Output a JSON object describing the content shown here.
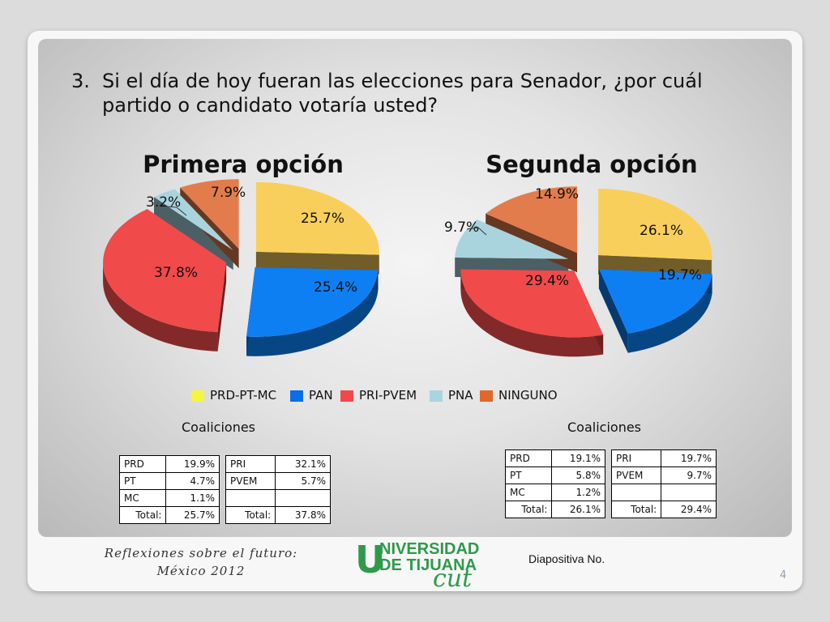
{
  "question": {
    "number": "3.",
    "text": "Si el día de hoy fueran las elecciones para Senador, ¿por cuál partido o candidato votaría usted?"
  },
  "chart_data": [
    {
      "type": "pie",
      "title": "Primera opción",
      "categories": [
        "PRD-PT-MC",
        "PAN",
        "PRI-PVEM",
        "PNA",
        "NINGUNO"
      ],
      "values": [
        25.7,
        25.4,
        37.8,
        3.2,
        7.9
      ],
      "labels": [
        "25.7%",
        "25.4%",
        "37.8%",
        "3.2%",
        "7.9%"
      ],
      "exploded": true,
      "three_d": true
    },
    {
      "type": "pie",
      "title": "Segunda opción",
      "categories": [
        "PRD-PT-MC",
        "PAN",
        "PRI-PVEM",
        "PNA",
        "NINGUNO"
      ],
      "values": [
        26.1,
        19.7,
        29.4,
        9.7,
        14.9
      ],
      "labels": [
        "26.1%",
        "19.7%",
        "29.4%",
        "9.7%",
        "14.9%"
      ],
      "exploded": true,
      "three_d": true
    }
  ],
  "legend": {
    "position": "bottom",
    "items": [
      {
        "label": "PRD-PT-MC",
        "color": "#f5f542"
      },
      {
        "label": "PAN",
        "color": "#0a6ee6"
      },
      {
        "label": "PRI-PVEM",
        "color": "#f2484b"
      },
      {
        "label": "PNA",
        "color": "#a8d6e0"
      },
      {
        "label": "NINGUNO",
        "color": "#e0692a"
      }
    ]
  },
  "colors": {
    "PRD-PT-MC": "#f9cf5c",
    "PAN": "#0d7ff2",
    "PRI-PVEM": "#f04a4a",
    "PNA": "#a9d4de",
    "NINGUNO": "#e27c4c"
  },
  "coalitions": {
    "title_left": "Coaliciones",
    "title_right": "Coaliciones",
    "left": {
      "table_a": {
        "rows": [
          [
            "PRD",
            "19.9%"
          ],
          [
            "PT",
            "4.7%"
          ],
          [
            "MC",
            "1.1%"
          ]
        ],
        "total_label": "Total:",
        "total_value": "25.7%"
      },
      "table_b": {
        "rows": [
          [
            "PRI",
            "32.1%"
          ],
          [
            "PVEM",
            "5.7%"
          ],
          [
            "",
            ""
          ]
        ],
        "total_label": "Total:",
        "total_value": "37.8%"
      }
    },
    "right": {
      "table_a": {
        "rows": [
          [
            "PRD",
            "19.1%"
          ],
          [
            "PT",
            "5.8%"
          ],
          [
            "MC",
            "1.2%"
          ]
        ],
        "total_label": "Total:",
        "total_value": "26.1%"
      },
      "table_b": {
        "rows": [
          [
            "PRI",
            "19.7%"
          ],
          [
            "PVEM",
            "9.7%"
          ],
          [
            "",
            ""
          ]
        ],
        "total_label": "Total:",
        "total_value": "29.4%"
      }
    }
  },
  "footer": {
    "line1": "Reflexiones sobre el futuro:",
    "line2": "México  2012",
    "logo_u": "U",
    "logo_line1": "NIVERSIDAD",
    "logo_line2": "DE TIJUANA",
    "logo_line3": "cut",
    "slide_label": "Diapositiva No.",
    "page_number": "4"
  }
}
